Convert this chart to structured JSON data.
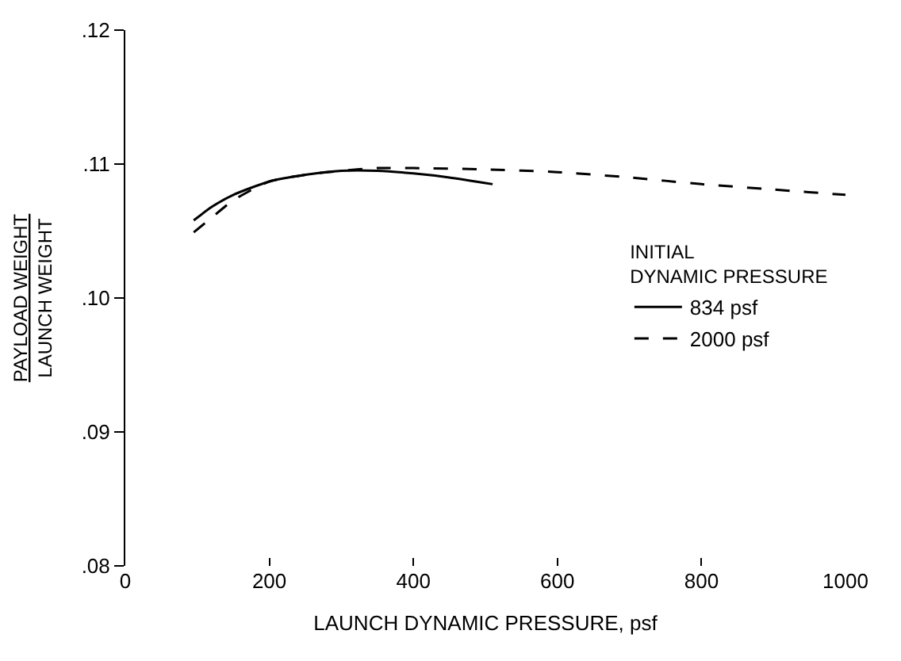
{
  "chart_data": {
    "type": "line",
    "xlabel": "LAUNCH DYNAMIC PRESSURE, psf",
    "ylabel": "PAYLOAD WEIGHT\nLAUNCH WEIGHT",
    "legend_title": "INITIAL\nDYNAMIC PRESSURE",
    "legend": "right",
    "xlim": [
      0,
      1000
    ],
    "xticks": [
      0,
      200,
      400,
      600,
      800,
      1000
    ],
    "ylim": [
      0.08,
      0.12
    ],
    "yticks": [
      {
        "value": 0.08,
        "label": ".08"
      },
      {
        "value": 0.09,
        "label": ".09"
      },
      {
        "value": 0.1,
        "label": ".10"
      },
      {
        "value": 0.11,
        "label": ".11"
      },
      {
        "value": 0.12,
        "label": ".12"
      }
    ],
    "series": [
      {
        "name": "834 psf",
        "color": "#000000",
        "line_style": "solid",
        "x": [
          95,
          120,
          150,
          200,
          250,
          300,
          350,
          400,
          450,
          510
        ],
        "values": [
          0.1058,
          0.1068,
          0.1077,
          0.1087,
          0.1092,
          0.1095,
          0.1095,
          0.1093,
          0.109,
          0.1085
        ]
      },
      {
        "name": "2000 psf",
        "color": "#000000",
        "line_style": "dashed",
        "x": [
          95,
          120,
          150,
          200,
          250,
          300,
          350,
          400,
          500,
          600,
          700,
          800,
          900,
          1000
        ],
        "values": [
          0.1049,
          0.106,
          0.1073,
          0.1087,
          0.1092,
          0.1095,
          0.1097,
          0.1097,
          0.1096,
          0.1094,
          0.109,
          0.1085,
          0.1081,
          0.1077
        ]
      }
    ]
  }
}
